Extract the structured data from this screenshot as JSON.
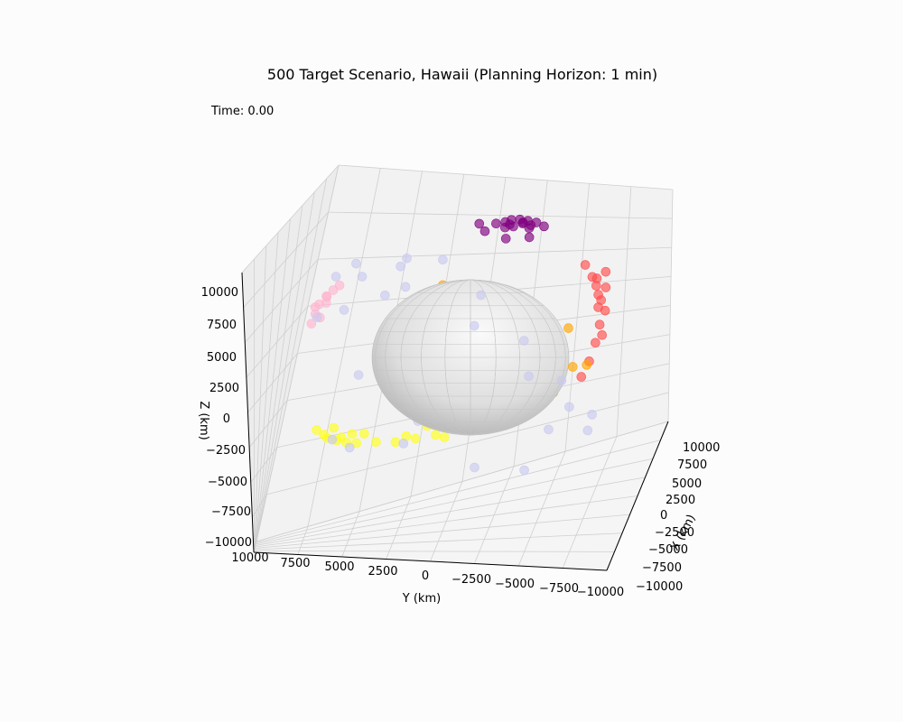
{
  "chart_data": {
    "type": "scatter3d",
    "title": "500 Target Scenario, Hawaii (Planning Horizon: 1 min)",
    "time_label": "Time: 0.00",
    "xlabel": "X (km)",
    "ylabel": "Y (km)",
    "zlabel": "Z (km)",
    "xlim": [
      -10000,
      10000
    ],
    "ylim": [
      -10000,
      10000
    ],
    "zlim": [
      -10000,
      10000
    ],
    "x_ticks": [
      "10000",
      "7500",
      "5000",
      "2500",
      "0",
      "−2500",
      "−5000",
      "−7500",
      "−10000"
    ],
    "y_ticks": [
      "10000",
      "7500",
      "5000",
      "2500",
      "0",
      "−2500",
      "−5000",
      "−7500",
      "−10000"
    ],
    "z_ticks": [
      "10000",
      "7500",
      "5000",
      "2500",
      "0",
      "−2500",
      "−5000",
      "−7500",
      "−10000"
    ],
    "grid": true,
    "earth": {
      "label": "Earth",
      "radius_km": 6371,
      "color": "#d9d9d9"
    },
    "series": [
      {
        "color": "#800080",
        "points": [
          [
            200,
            -2200,
            8700
          ],
          [
            500,
            -1200,
            8900
          ],
          [
            -300,
            -400,
            9100
          ],
          [
            1000,
            -2600,
            8800
          ],
          [
            -800,
            -3200,
            8700
          ],
          [
            1600,
            -1800,
            8600
          ],
          [
            -1400,
            -900,
            8800
          ],
          [
            2100,
            -2900,
            8400
          ],
          [
            -2000,
            -3400,
            8300
          ],
          [
            800,
            -3800,
            8500
          ],
          [
            -600,
            -2800,
            9000
          ],
          [
            1300,
            -3300,
            8700
          ],
          [
            2700,
            -1400,
            8200
          ],
          [
            -2400,
            -2200,
            8400
          ],
          [
            0,
            -3000,
            9050
          ],
          [
            400,
            -2500,
            9100
          ],
          [
            -200,
            -1800,
            9100
          ],
          [
            700,
            -2000,
            9050
          ]
        ]
      },
      {
        "color": "#ff4d4d",
        "points": [
          [
            -2500,
            -7000,
            5500
          ],
          [
            -3000,
            -7300,
            5000
          ],
          [
            -3500,
            -7500,
            4500
          ],
          [
            -2000,
            -7200,
            5300
          ],
          [
            -4000,
            -7600,
            3800
          ],
          [
            -4500,
            -7800,
            2800
          ],
          [
            -5000,
            -7700,
            1800
          ],
          [
            -5500,
            -7500,
            800
          ],
          [
            -3800,
            -7700,
            4200
          ],
          [
            -1800,
            -6500,
            6200
          ],
          [
            -6000,
            -7200,
            0
          ],
          [
            -3200,
            -7900,
            3400
          ],
          [
            -4800,
            -8000,
            2200
          ],
          [
            -2800,
            -7800,
            4800
          ],
          [
            -1500,
            -7600,
            5600
          ]
        ]
      },
      {
        "color": "#ffff1a",
        "points": [
          [
            3500,
            6500,
            -4500
          ],
          [
            4000,
            6000,
            -4800
          ],
          [
            4500,
            5500,
            -5000
          ],
          [
            3000,
            7000,
            -4200
          ],
          [
            5000,
            4500,
            -5200
          ],
          [
            5500,
            3500,
            -5500
          ],
          [
            6000,
            2500,
            -5600
          ],
          [
            6500,
            1500,
            -5700
          ],
          [
            4200,
            6800,
            -3800
          ],
          [
            2800,
            7600,
            -3600
          ],
          [
            5200,
            5200,
            -4600
          ],
          [
            6200,
            1000,
            -5900
          ],
          [
            6800,
            -500,
            -5200
          ],
          [
            3800,
            6300,
            -4400
          ],
          [
            5800,
            3000,
            -5300
          ],
          [
            4600,
            5800,
            -4400
          ],
          [
            6400,
            2000,
            -5000
          ],
          [
            3200,
            7200,
            -4000
          ]
        ]
      },
      {
        "color": "#ffb6d0",
        "points": [
          [
            -500,
            7500,
            5200
          ],
          [
            -800,
            7800,
            4800
          ],
          [
            -300,
            7200,
            5500
          ],
          [
            -1200,
            7900,
            4300
          ],
          [
            200,
            7600,
            5000
          ],
          [
            -1600,
            8000,
            3800
          ],
          [
            -1000,
            7400,
            4900
          ],
          [
            400,
            7000,
            5600
          ],
          [
            -200,
            8100,
            4500
          ],
          [
            -1400,
            7600,
            4100
          ]
        ]
      },
      {
        "color": "#ffa500",
        "points": [
          [
            1200,
            1500,
            5000
          ],
          [
            6000,
            1000,
            2400
          ],
          [
            6200,
            -300,
            1900
          ],
          [
            5800,
            -600,
            1600
          ],
          [
            3500,
            600,
            2600
          ],
          [
            2800,
            -3800,
            2200
          ],
          [
            4200,
            -5200,
            800
          ],
          [
            6500,
            1200,
            1200
          ],
          [
            5600,
            3200,
            -800
          ],
          [
            6100,
            -5400,
            -2500
          ],
          [
            6000,
            -4500,
            -4100
          ],
          [
            6400,
            -6100,
            -2600
          ],
          [
            5900,
            -900,
            1700
          ],
          [
            5500,
            -1200,
            1900
          ]
        ]
      },
      {
        "color": "#c9c9f0",
        "points": [
          [
            -6000,
            5000,
            -3500
          ],
          [
            -5500,
            6000,
            -3000
          ],
          [
            -3000,
            7500,
            4500
          ],
          [
            -1000,
            7000,
            6500
          ],
          [
            2000,
            6500,
            6500
          ],
          [
            5000,
            4500,
            5500
          ],
          [
            7000,
            3000,
            3000
          ],
          [
            8000,
            500,
            0
          ],
          [
            7500,
            -2500,
            -2000
          ],
          [
            5000,
            -5500,
            -5000
          ],
          [
            1000,
            -7000,
            -5500
          ],
          [
            -2000,
            -7500,
            -3500
          ],
          [
            -4500,
            -6000,
            -500
          ],
          [
            -6000,
            -4000,
            2500
          ],
          [
            -5500,
            -1500,
            5500
          ],
          [
            -3000,
            1000,
            7500
          ],
          [
            500,
            3500,
            7000
          ],
          [
            4000,
            5000,
            4000
          ],
          [
            6500,
            4500,
            0
          ],
          [
            6000,
            2500,
            -4500
          ],
          [
            3000,
            -1000,
            -7500
          ],
          [
            -1000,
            -4000,
            -7000
          ],
          [
            -4500,
            -5500,
            -3500
          ],
          [
            -7000,
            -4500,
            500
          ],
          [
            -7500,
            -1500,
            4000
          ],
          [
            -5500,
            2500,
            6500
          ],
          [
            -1500,
            5500,
            6500
          ],
          [
            3000,
            7000,
            3500
          ],
          [
            5500,
            6000,
            -1000
          ],
          [
            4500,
            3000,
            -5500
          ]
        ]
      }
    ],
    "connections_color": "#3a3a6a"
  }
}
